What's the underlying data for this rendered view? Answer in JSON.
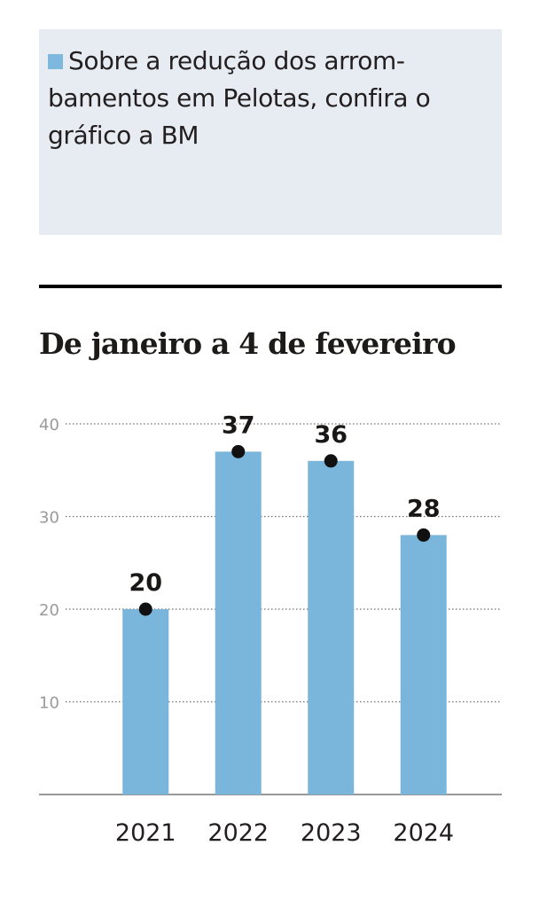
{
  "intro": {
    "text": "Sobre a redução dos arrom-bamentos em Pelotas, confira o gráfico a BM"
  },
  "chart_data": {
    "type": "bar",
    "title": "De janeiro a 4 de fevereiro",
    "categories": [
      "2021",
      "2022",
      "2023",
      "2024"
    ],
    "values": [
      20,
      37,
      36,
      28
    ],
    "yticks": [
      10,
      20,
      30,
      40
    ],
    "ylim": [
      0,
      40
    ],
    "grid": true,
    "bar_color": "#7ab6dc",
    "marker_color": "#111111",
    "data_labels": true
  }
}
